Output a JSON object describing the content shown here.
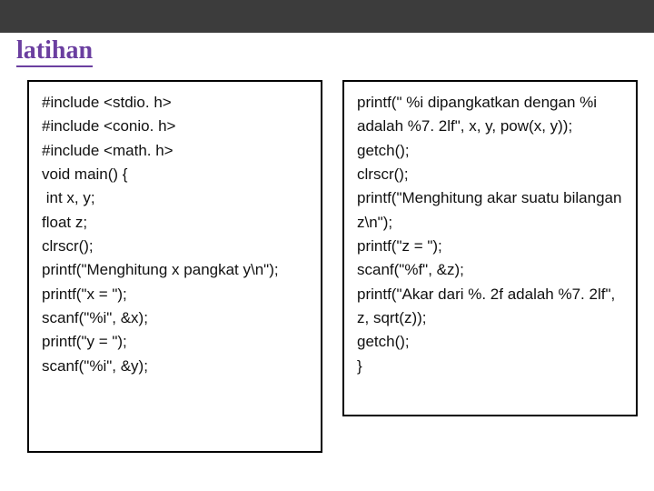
{
  "header": {
    "barColor": "#3c3c3c",
    "titleText": "latihan",
    "titleColor": "#6b3fa0",
    "underlineColor": "#6b3fa0",
    "titleFont": "cursive"
  },
  "panelBorderColor": "#000000",
  "codeFontSize": 17,
  "leftPanel": {
    "lines": [
      "#include <stdio. h>",
      "#include <conio. h>",
      "#include <math. h>",
      "void main() {",
      " int x, y;",
      "float z;",
      "clrscr();",
      "printf(\"Menghitung x pangkat y\\n\");",
      "printf(\"x = \");",
      "scanf(\"%i\", &x);",
      "printf(\"y = \");",
      "scanf(\"%i\", &y);"
    ]
  },
  "rightPanel": {
    "lines": [
      "printf(\" %i dipangkatkan dengan %i adalah %7. 2lf\", x, y, pow(x, y));",
      "getch();",
      "clrscr();",
      "printf(\"Menghitung akar suatu bilangan z\\n\");",
      "printf(\"z = \");",
      "scanf(\"%f\", &z);",
      "printf(\"Akar dari %. 2f adalah %7. 2lf\", z, sqrt(z));",
      "getch();",
      "}"
    ]
  }
}
